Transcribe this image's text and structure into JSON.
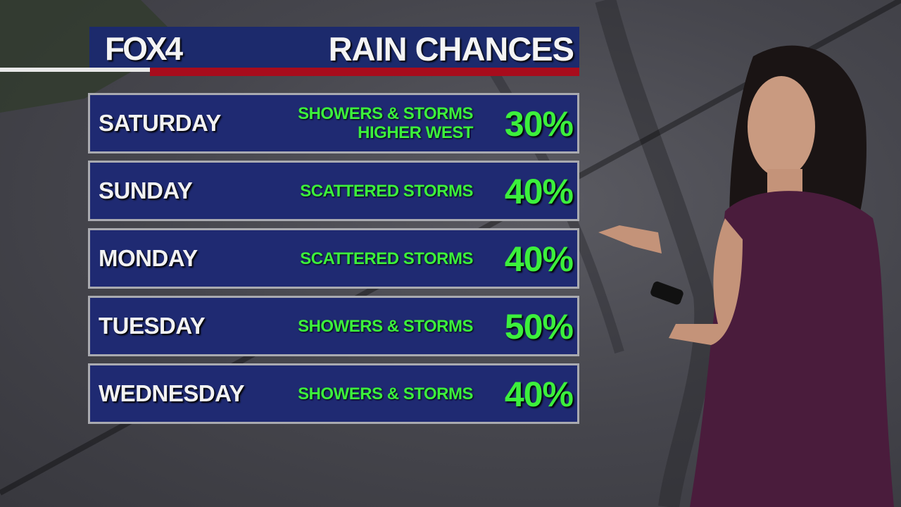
{
  "header": {
    "logo": "FOX4",
    "title": "RAIN CHANCES"
  },
  "colors": {
    "panel_navy": "#1f2a72",
    "accent_red": "#a80c1c",
    "text_green": "#3cf03c"
  },
  "forecast": [
    {
      "day": "SATURDAY",
      "desc": [
        "SHOWERS & STORMS",
        "HIGHER WEST"
      ],
      "chance": "30%"
    },
    {
      "day": "SUNDAY",
      "desc": [
        "SCATTERED STORMS"
      ],
      "chance": "40%"
    },
    {
      "day": "MONDAY",
      "desc": [
        "SCATTERED STORMS"
      ],
      "chance": "40%"
    },
    {
      "day": "TUESDAY",
      "desc": [
        "SHOWERS & STORMS"
      ],
      "chance": "50%"
    },
    {
      "day": "WEDNESDAY",
      "desc": [
        "SHOWERS & STORMS"
      ],
      "chance": "40%"
    }
  ]
}
